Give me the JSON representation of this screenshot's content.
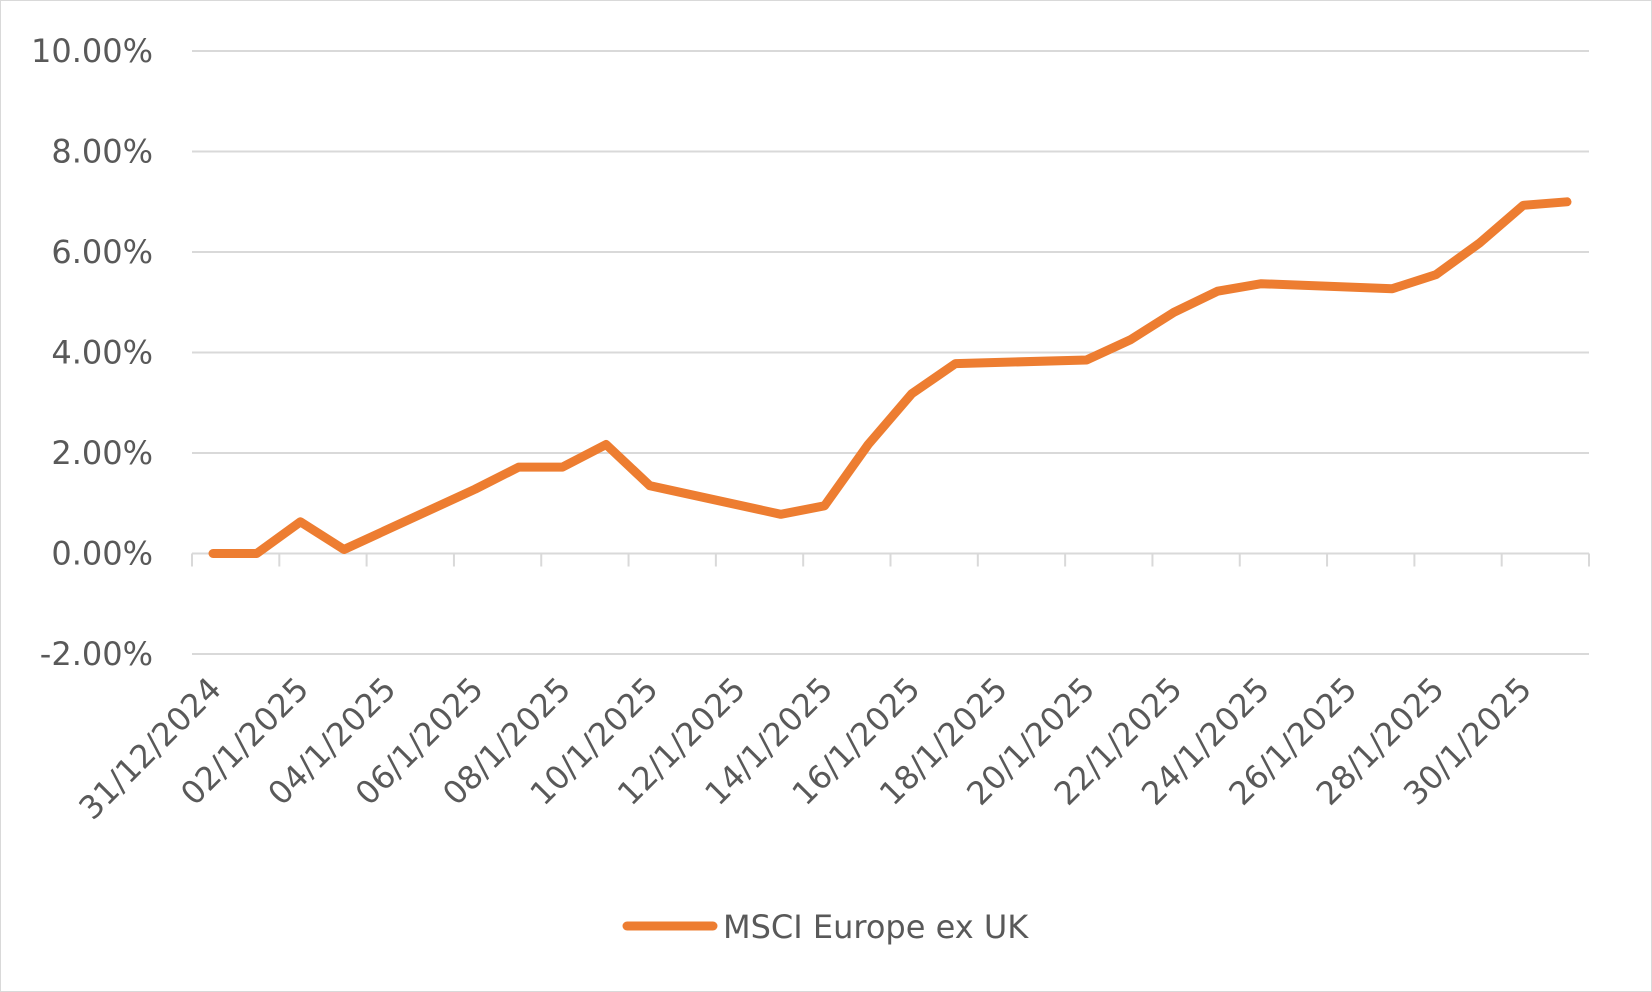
{
  "chart_data": {
    "type": "line",
    "title": "",
    "xlabel": "",
    "ylabel": "",
    "x_ticks": [
      "31/12/2024",
      "02/1/2025",
      "04/1/2025",
      "06/1/2025",
      "08/1/2025",
      "10/1/2025",
      "12/1/2025",
      "14/1/2025",
      "16/1/2025",
      "18/1/2025",
      "20/1/2025",
      "22/1/2025",
      "24/1/2025",
      "26/1/2025",
      "28/1/2025",
      "30/1/2025"
    ],
    "x_range": [
      "31/12/2024",
      "31/1/2025"
    ],
    "y_ticks": [
      "10.00%",
      "8.00%",
      "6.00%",
      "4.00%",
      "2.00%",
      "0.00%",
      "-2.00%"
    ],
    "ylim": [
      -2,
      10
    ],
    "grid": true,
    "legend_position": "bottom",
    "series": [
      {
        "name": "MSCI Europe ex UK",
        "color": "#ED7D31",
        "points": [
          {
            "x": "31/12/2024",
            "y": 0.0
          },
          {
            "x": "01/1/2025",
            "y": 0.0
          },
          {
            "x": "02/1/2025",
            "y": 0.63
          },
          {
            "x": "03/1/2025",
            "y": 0.08
          },
          {
            "x": "06/1/2025",
            "y": 1.28
          },
          {
            "x": "07/1/2025",
            "y": 1.72
          },
          {
            "x": "08/1/2025",
            "y": 1.72
          },
          {
            "x": "09/1/2025",
            "y": 2.17
          },
          {
            "x": "10/1/2025",
            "y": 1.35
          },
          {
            "x": "13/1/2025",
            "y": 0.78
          },
          {
            "x": "14/1/2025",
            "y": 0.95
          },
          {
            "x": "15/1/2025",
            "y": 2.17
          },
          {
            "x": "16/1/2025",
            "y": 3.18
          },
          {
            "x": "17/1/2025",
            "y": 3.78
          },
          {
            "x": "20/1/2025",
            "y": 3.85
          },
          {
            "x": "21/1/2025",
            "y": 4.25
          },
          {
            "x": "22/1/2025",
            "y": 4.8
          },
          {
            "x": "23/1/2025",
            "y": 5.22
          },
          {
            "x": "24/1/2025",
            "y": 5.37
          },
          {
            "x": "27/1/2025",
            "y": 5.27
          },
          {
            "x": "28/1/2025",
            "y": 5.55
          },
          {
            "x": "29/1/2025",
            "y": 6.18
          },
          {
            "x": "30/1/2025",
            "y": 6.93
          },
          {
            "x": "31/1/2025",
            "y": 7.0
          }
        ]
      }
    ]
  }
}
